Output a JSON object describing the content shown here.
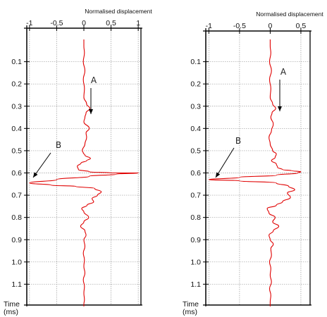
{
  "chart_data": [
    {
      "type": "line",
      "title": "Normalised displacement",
      "xlabel": "",
      "ylabel": "Time (ms)",
      "ylabel_lines": [
        "Time",
        "(ms)"
      ],
      "x_ticks": [
        -1,
        -0.5,
        0,
        0.5,
        1
      ],
      "x_tick_labels": [
        "-1",
        "-0.5",
        "0",
        "0.5",
        "1"
      ],
      "xlim": [
        -1.05,
        1.05
      ],
      "y_ticks": [
        0.1,
        0.2,
        0.3,
        0.4,
        0.5,
        0.6,
        0.7,
        0.8,
        0.9,
        1.0,
        1.1
      ],
      "y_tick_labels": [
        "0.1",
        "0.2",
        "0.3",
        "0.4",
        "0.5",
        "0.6",
        "0.7",
        "0.8",
        "0.9",
        "1.0",
        "1.1"
      ],
      "ylim": [
        0,
        1.2
      ],
      "grid": true,
      "series": [
        {
          "color": "#e00000",
          "x": [
            0,
            0,
            0.01,
            -0.01,
            0.02,
            -0.01,
            0.01,
            0.0,
            0.05,
            0.11,
            0.04,
            0.02,
            0.0,
            0.1,
            0.04,
            0.05,
            0.02,
            -0.03,
            -0.01,
            0.02,
            0.12,
            0.05,
            -0.05,
            -0.12,
            -0.1,
            0.1,
            0.5,
            1.0,
            0.6,
            0.1,
            -0.5,
            -1.0,
            -0.6,
            -0.15,
            0.2,
            0.32,
            0.25,
            0.15,
            0.18,
            0.06,
            -0.04,
            0.0,
            0.09,
            0.0,
            -0.06,
            0.02,
            0.04,
            0.0,
            0.02,
            -0.01,
            0.01,
            0.0,
            0.02,
            -0.01,
            0.01,
            0.0,
            0.01,
            0.0,
            0.0
          ],
          "y": [
            0.0,
            0.03,
            0.06,
            0.1,
            0.14,
            0.18,
            0.22,
            0.26,
            0.29,
            0.31,
            0.33,
            0.35,
            0.37,
            0.4,
            0.42,
            0.44,
            0.47,
            0.5,
            0.51,
            0.52,
            0.535,
            0.545,
            0.555,
            0.57,
            0.585,
            0.595,
            0.6,
            0.6,
            0.605,
            0.615,
            0.63,
            0.645,
            0.655,
            0.66,
            0.67,
            0.685,
            0.7,
            0.715,
            0.73,
            0.745,
            0.76,
            0.775,
            0.8,
            0.82,
            0.84,
            0.86,
            0.88,
            0.9,
            0.93,
            0.96,
            0.99,
            1.02,
            1.05,
            1.08,
            1.11,
            1.14,
            1.17,
            1.19,
            1.2
          ]
        }
      ],
      "annotations": [
        {
          "label": "A",
          "x": 0.1,
          "y": 0.38
        },
        {
          "label": "B",
          "x": -1.0,
          "y": 0.64
        }
      ]
    },
    {
      "type": "line",
      "title": "Normalised displacement",
      "xlabel": "",
      "ylabel": "Time (ms)",
      "ylabel_lines": [
        "Time",
        "(ms)"
      ],
      "x_ticks": [
        -1,
        -0.5,
        0,
        0.5
      ],
      "x_tick_labels": [
        "-1",
        "-0.5",
        "0",
        "0.5"
      ],
      "xlim": [
        -1.05,
        0.65
      ],
      "y_ticks": [
        0.1,
        0.2,
        0.3,
        0.4,
        0.5,
        0.6,
        0.7,
        0.8,
        0.9,
        1.0,
        1.1
      ],
      "y_tick_labels": [
        "0.1",
        "0.2",
        "0.3",
        "0.4",
        "0.5",
        "0.6",
        "0.7",
        "0.8",
        "0.9",
        "1.0",
        "1.1"
      ],
      "ylim": [
        0,
        1.2
      ],
      "grid": true,
      "series": [
        {
          "color": "#e00000",
          "x": [
            0,
            0,
            0.01,
            -0.01,
            0.02,
            -0.01,
            0.01,
            0.0,
            0.04,
            0.09,
            0.03,
            0.01,
            0.05,
            0.02,
            -0.02,
            0.0,
            0.04,
            0.1,
            0.08,
            0.02,
            0.1,
            0.12,
            0.2,
            0.35,
            0.5,
            0.45,
            0.1,
            -0.5,
            -1.0,
            -0.5,
            0.1,
            0.3,
            0.4,
            0.28,
            0.33,
            0.2,
            0.1,
            -0.05,
            -0.02,
            0.08,
            0.04,
            0.14,
            0.05,
            -0.02,
            0.0,
            0.05,
            0.01,
            0.02,
            -0.01,
            0.01,
            0.0,
            0.02,
            -0.01,
            0.01,
            0.0,
            0.0
          ],
          "y": [
            0.0,
            0.03,
            0.06,
            0.1,
            0.14,
            0.18,
            0.22,
            0.26,
            0.29,
            0.31,
            0.33,
            0.35,
            0.38,
            0.41,
            0.44,
            0.47,
            0.5,
            0.515,
            0.53,
            0.545,
            0.56,
            0.575,
            0.585,
            0.59,
            0.595,
            0.6,
            0.61,
            0.62,
            0.63,
            0.635,
            0.645,
            0.66,
            0.675,
            0.69,
            0.71,
            0.73,
            0.745,
            0.76,
            0.78,
            0.8,
            0.82,
            0.84,
            0.86,
            0.88,
            0.9,
            0.92,
            0.94,
            0.97,
            1.0,
            1.03,
            1.06,
            1.09,
            1.12,
            1.15,
            1.18,
            1.2
          ]
        }
      ],
      "annotations": [
        {
          "label": "A",
          "x": 0.03,
          "y": 0.33
        },
        {
          "label": "B",
          "x": -1.0,
          "y": 0.63
        }
      ]
    }
  ]
}
